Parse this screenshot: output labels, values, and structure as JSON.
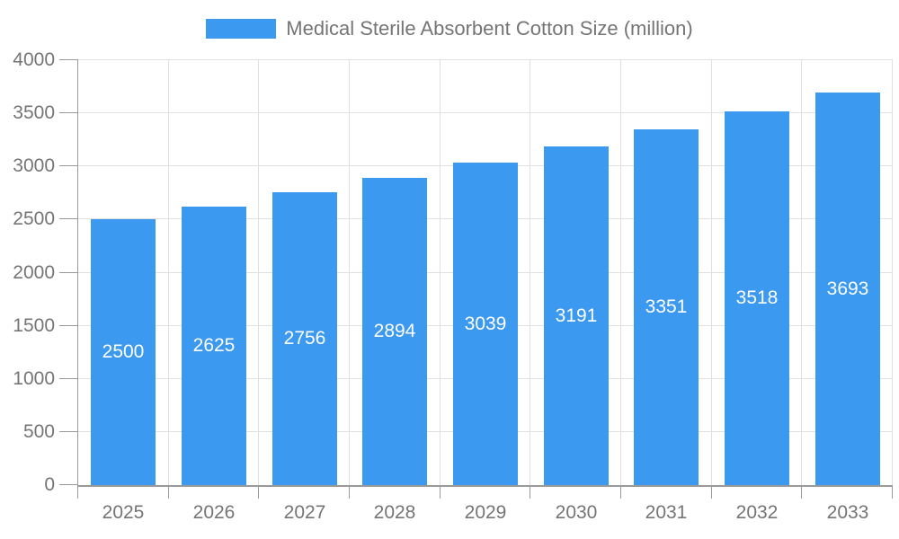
{
  "legend": {
    "label": "Medical Sterile Absorbent Cotton Size (million)"
  },
  "chart_data": {
    "type": "bar",
    "title": "Medical Sterile Absorbent Cotton Size (million)",
    "categories": [
      "2025",
      "2026",
      "2027",
      "2028",
      "2029",
      "2030",
      "2031",
      "2032",
      "2033"
    ],
    "series": [
      {
        "name": "Medical Sterile Absorbent Cotton Size (million)",
        "values": [
          2500,
          2625,
          2756,
          2894,
          3039,
          3191,
          3351,
          3518,
          3693
        ]
      }
    ],
    "xlabel": "",
    "ylabel": "",
    "ylim": [
      0,
      4000
    ],
    "ytick_step": 500,
    "yticks": [
      0,
      500,
      1000,
      1500,
      2000,
      2500,
      3000,
      3500,
      4000
    ],
    "grid": true,
    "legend_position": "top-center",
    "value_labels": "inside-center",
    "colors": {
      "bar": "#3B99F0",
      "grid": "#E0E0E0",
      "axis": "#999999",
      "text": "#757575",
      "value_label": "#FFFFFF",
      "background": "#FFFFFF"
    }
  }
}
